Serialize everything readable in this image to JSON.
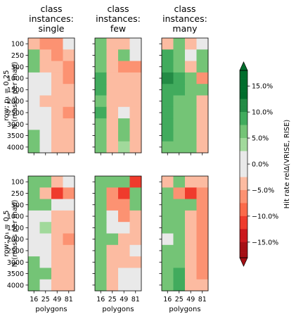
{
  "chart_data": {
    "type": "heatmap",
    "column_titles": [
      [
        "class",
        "instances:",
        "single"
      ],
      [
        "class",
        "instances:",
        "few"
      ],
      [
        "class",
        "instances:",
        "many"
      ]
    ],
    "row_titles": [
      [
        "row; p₁ = 0.25",
        "N (masks per map)"
      ],
      [
        "row; p₁ = 0.5",
        "N (masks per map)"
      ]
    ],
    "xlabel": "polygons",
    "x_categories": [
      "16",
      "25",
      "49",
      "81"
    ],
    "y_categories": [
      "100",
      "250",
      "500",
      "1000",
      "1500",
      "2000",
      "2500",
      "3000",
      "3500",
      "4000"
    ],
    "colorbar": {
      "label": "Hit rate relΔ(VRISE, RISE)",
      "ticks": [
        15,
        10,
        5,
        0,
        -5,
        -10,
        -15
      ],
      "tick_labels": [
        "15.0%",
        "10.0%",
        "5.0%",
        "0.0%",
        "−5.0%",
        "−10.0%",
        "−15.0%"
      ],
      "range": [
        -18,
        18
      ],
      "extend": "both",
      "colors": {
        "pos": [
          "#e9e9e9",
          "#a1d99b",
          "#74c476",
          "#41ab5d",
          "#238b45",
          "#006d2c"
        ],
        "neg": [
          "#e9e9e9",
          "#fcbba1",
          "#fc9272",
          "#fb6a4a",
          "#ef3b2c",
          "#cb181d",
          "#a50f15"
        ]
      }
    },
    "panels": [
      {
        "row": 0,
        "col": 0,
        "values": [
          [
            -4,
            -5,
            -6,
            0
          ],
          [
            5,
            -4,
            -5,
            -4
          ],
          [
            5,
            -4,
            -4,
            -5
          ],
          [
            0,
            0,
            -4,
            -5
          ],
          [
            0,
            0,
            -4,
            -4
          ],
          [
            0,
            -3,
            -4,
            -4
          ],
          [
            0,
            0,
            -4,
            -5
          ],
          [
            0,
            0,
            -4,
            -4
          ],
          [
            5,
            0,
            -4,
            -4
          ],
          [
            5,
            0,
            -4,
            -4
          ]
        ]
      },
      {
        "row": 0,
        "col": 1,
        "values": [
          [
            5,
            -4,
            -4,
            0
          ],
          [
            6,
            -4,
            5,
            0
          ],
          [
            7,
            -4,
            -5,
            -5
          ],
          [
            9,
            -4,
            -3,
            -4
          ],
          [
            8,
            -3,
            -3,
            -3
          ],
          [
            7,
            -4,
            -3,
            -4
          ],
          [
            8,
            -3,
            0,
            -4
          ],
          [
            7,
            -4,
            5,
            -4
          ],
          [
            7,
            -4,
            5,
            -4
          ],
          [
            6,
            -4,
            4,
            -4
          ]
        ]
      },
      {
        "row": 0,
        "col": 2,
        "values": [
          [
            -4,
            5,
            -4,
            0
          ],
          [
            8,
            6,
            0,
            5
          ],
          [
            9,
            7,
            -4,
            5
          ],
          [
            10,
            9,
            7,
            -7
          ],
          [
            9,
            8,
            7,
            5
          ],
          [
            9,
            7,
            6,
            -4
          ],
          [
            8,
            6,
            5,
            -4
          ],
          [
            8,
            6,
            5,
            -4
          ],
          [
            8,
            7,
            6,
            -3
          ],
          [
            6,
            6,
            5,
            -3
          ]
        ]
      },
      {
        "row": 1,
        "col": 0,
        "values": [
          [
            6,
            6,
            -4,
            0
          ],
          [
            5,
            -4,
            -12,
            -6
          ],
          [
            5,
            5,
            0,
            0
          ],
          [
            0,
            0,
            -4,
            -4
          ],
          [
            0,
            4,
            -4,
            -4
          ],
          [
            0,
            0,
            -4,
            -5
          ],
          [
            0,
            0,
            -4,
            -4
          ],
          [
            5,
            0,
            -4,
            -4
          ],
          [
            5,
            5,
            -4,
            -4
          ],
          [
            6,
            0,
            -4,
            -4
          ]
        ]
      },
      {
        "row": 1,
        "col": 1,
        "values": [
          [
            6,
            6,
            6,
            -10
          ],
          [
            5,
            -7,
            -12,
            7
          ],
          [
            5,
            -6,
            -6,
            5
          ],
          [
            5,
            0,
            -5,
            -4
          ],
          [
            5,
            0,
            0,
            -4
          ],
          [
            5,
            5,
            -4,
            -4
          ],
          [
            5,
            -4,
            -4,
            0
          ],
          [
            5,
            -4,
            -4,
            -4
          ],
          [
            5,
            -4,
            0,
            0
          ],
          [
            5,
            -4,
            0,
            0
          ]
        ]
      },
      {
        "row": 1,
        "col": 2,
        "values": [
          [
            -4,
            5,
            -4,
            -4
          ],
          [
            6,
            -6,
            -10,
            -5
          ],
          [
            7,
            5,
            6,
            -5
          ],
          [
            6,
            6,
            -4,
            -5
          ],
          [
            6,
            5,
            -4,
            -6
          ],
          [
            0,
            6,
            -4,
            -5
          ],
          [
            6,
            7,
            -4,
            -6
          ],
          [
            6,
            7,
            -4,
            -6
          ],
          [
            7,
            8,
            -4,
            -5
          ],
          [
            6,
            8,
            -4,
            -4
          ]
        ]
      }
    ]
  }
}
